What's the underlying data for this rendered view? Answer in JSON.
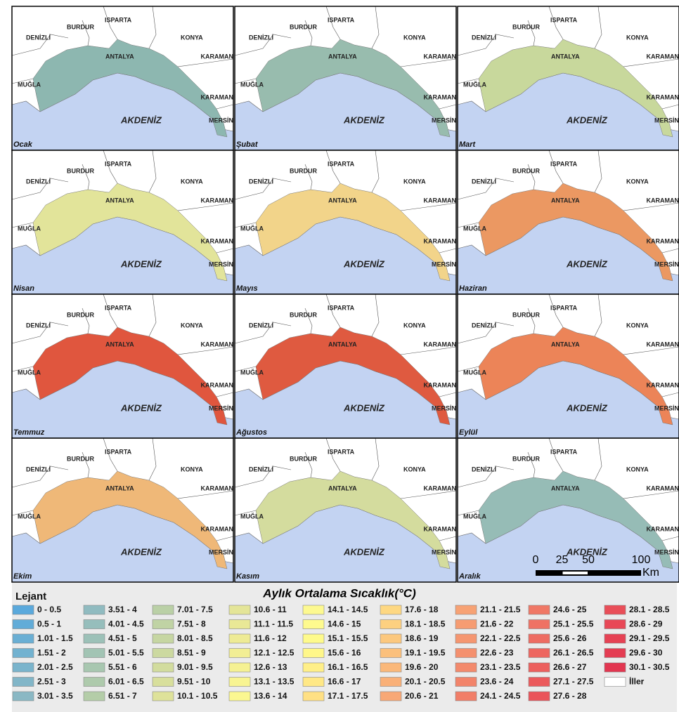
{
  "panels": [
    {
      "month": "Ocak",
      "color": "#8db7b0"
    },
    {
      "month": "Şubat",
      "color": "#98bcae"
    },
    {
      "month": "Mart",
      "color": "#c8d89c"
    },
    {
      "month": "Nisan",
      "color": "#e2e49a"
    },
    {
      "month": "Mayıs",
      "color": "#f2d48a"
    },
    {
      "month": "Haziran",
      "color": "#eb9862"
    },
    {
      "month": "Temmuz",
      "color": "#e0563e"
    },
    {
      "month": "Ağustos",
      "color": "#df5a40"
    },
    {
      "month": "Eylül",
      "color": "#ec8458"
    },
    {
      "month": "Ekim",
      "color": "#efb878"
    },
    {
      "month": "Kasım",
      "color": "#d4dc9e"
    },
    {
      "month": "Aralık",
      "color": "#96bcb6"
    }
  ],
  "map_labels": {
    "denizli": "DENİZLİ",
    "burdur": "BURDUR",
    "isparta": "ISPARTA",
    "konya": "KONYA",
    "karaman": "KARAMAN",
    "mugla": "MUĞLA",
    "antalya": "ANTALYA",
    "akdeniz": "AKDENİZ",
    "mersin": "MERSİN"
  },
  "scale_bar": {
    "ticks": [
      0,
      25,
      50,
      100
    ],
    "unit": "Km"
  },
  "legend": {
    "heading": "Lejant",
    "title": "Aylık Ortalama Sıcaklık(°C)",
    "classes": [
      {
        "label": "0 - 0.5",
        "color": "#5aa9dc"
      },
      {
        "label": "0.5 - 1",
        "color": "#62acd8"
      },
      {
        "label": "1.01 - 1.5",
        "color": "#6aafd4"
      },
      {
        "label": "1.51 - 2",
        "color": "#72b2d0"
      },
      {
        "label": "2.01 - 2.5",
        "color": "#7ab4cc"
      },
      {
        "label": "2.51 - 3",
        "color": "#82b6c8"
      },
      {
        "label": "3.01 - 3.5",
        "color": "#8ab8c4"
      },
      {
        "label": "3.51 - 4",
        "color": "#90bbc0"
      },
      {
        "label": "4.01 - 4.5",
        "color": "#96bebc"
      },
      {
        "label": "4.51 - 5",
        "color": "#9cc1b8"
      },
      {
        "label": "5.01 - 5.5",
        "color": "#a2c4b4"
      },
      {
        "label": "5.51 - 6",
        "color": "#a8c7b0"
      },
      {
        "label": "6.01 - 6.5",
        "color": "#aecaac"
      },
      {
        "label": "6.51 - 7",
        "color": "#b4cda8"
      },
      {
        "label": "7.01 - 7.5",
        "color": "#bad0a6"
      },
      {
        "label": "7.51 - 8",
        "color": "#c0d3a4"
      },
      {
        "label": "8.01 - 8.5",
        "color": "#c6d6a2"
      },
      {
        "label": "8.51 - 9",
        "color": "#ccd9a0"
      },
      {
        "label": "9.01 - 9.5",
        "color": "#d2dc9e"
      },
      {
        "label": "9.51 - 10",
        "color": "#d8df9c"
      },
      {
        "label": "10.1 - 10.5",
        "color": "#dee29a"
      },
      {
        "label": "10.6 - 11",
        "color": "#e4e598"
      },
      {
        "label": "11.1 - 11.5",
        "color": "#e9e896"
      },
      {
        "label": "11.6 - 12",
        "color": "#eeeb95"
      },
      {
        "label": "12.1 - 12.5",
        "color": "#f2ee94"
      },
      {
        "label": "12.6 - 13",
        "color": "#f5f193"
      },
      {
        "label": "13.1 - 13.5",
        "color": "#f8f492"
      },
      {
        "label": "13.6 - 14",
        "color": "#fbf791"
      },
      {
        "label": "14.1 - 14.5",
        "color": "#fdf990"
      },
      {
        "label": "14.6 - 15",
        "color": "#fefa8e"
      },
      {
        "label": "15.1 - 15.5",
        "color": "#fefa8c"
      },
      {
        "label": "15.6 - 16",
        "color": "#fff78a"
      },
      {
        "label": "16.1 - 16.5",
        "color": "#ffef88"
      },
      {
        "label": "16.6 - 17",
        "color": "#ffe886"
      },
      {
        "label": "17.1 - 17.5",
        "color": "#ffe084"
      },
      {
        "label": "17.6 - 18",
        "color": "#fed882"
      },
      {
        "label": "18.1 - 18.5",
        "color": "#fdd080"
      },
      {
        "label": "18.6 - 19",
        "color": "#fcc87e"
      },
      {
        "label": "19.1 - 19.5",
        "color": "#fbc07c"
      },
      {
        "label": "19.6 - 20",
        "color": "#fab87a"
      },
      {
        "label": "20.1 - 20.5",
        "color": "#f9b078"
      },
      {
        "label": "20.6 - 21",
        "color": "#f8a876"
      },
      {
        "label": "21.1 - 21.5",
        "color": "#f7a274"
      },
      {
        "label": "21.6 - 22",
        "color": "#f69c72"
      },
      {
        "label": "22.1 - 22.5",
        "color": "#f59670"
      },
      {
        "label": "22.6 - 23",
        "color": "#f4906e"
      },
      {
        "label": "23.1 - 23.5",
        "color": "#f38a6c"
      },
      {
        "label": "23.6 - 24",
        "color": "#f2846a"
      },
      {
        "label": "24.1 - 24.5",
        "color": "#f17e68"
      },
      {
        "label": "24.6 - 25",
        "color": "#f07866"
      },
      {
        "label": "25.1 - 25.5",
        "color": "#ef7264"
      },
      {
        "label": "25.6 - 26",
        "color": "#ee6c62"
      },
      {
        "label": "26.1 - 26.5",
        "color": "#ed6660"
      },
      {
        "label": "26.6 - 27",
        "color": "#ec605e"
      },
      {
        "label": "27.1 - 27.5",
        "color": "#eb5a5c"
      },
      {
        "label": "27.6 - 28",
        "color": "#ea545a"
      },
      {
        "label": "28.1 - 28.5",
        "color": "#e94e58"
      },
      {
        "label": "28.6 - 29",
        "color": "#e84856"
      },
      {
        "label": "29.1 - 29.5",
        "color": "#e64254"
      },
      {
        "label": "29.6 - 30",
        "color": "#e43c52"
      },
      {
        "label": "30.1 - 30.5",
        "color": "#e23650"
      },
      {
        "label": "İller",
        "color": "#ffffff"
      }
    ]
  }
}
